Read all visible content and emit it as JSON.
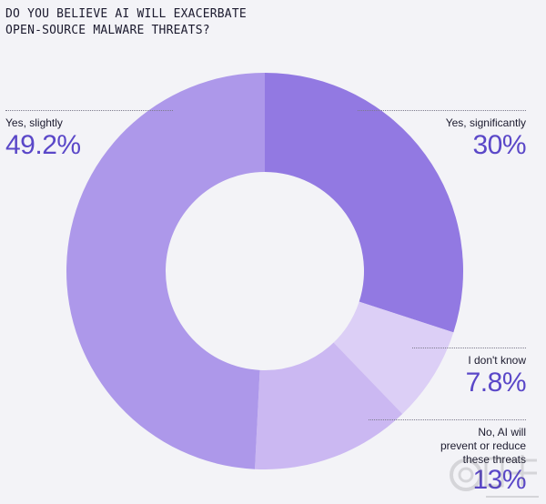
{
  "title_lines": [
    "DO YOU BELIEVE AI WILL EXACERBATE",
    "OPEN-SOURCE MALWARE THREATS?"
  ],
  "chart_data": {
    "type": "pie",
    "variant": "donut",
    "title": "DO YOU BELIEVE AI WILL EXACERBATE OPEN-SOURCE MALWARE THREATS?",
    "categories": [
      "Yes, significantly",
      "I don't know",
      "No, AI will\nprevent or reduce\nthese threats",
      "Yes, slightly"
    ],
    "values": [
      30,
      7.8,
      13,
      49.2
    ],
    "value_labels": [
      "30%",
      "7.8%",
      "13%",
      "49.2%"
    ],
    "colors": [
      "#9279e2",
      "#dccff6",
      "#cbb8f2",
      "#ad98ea"
    ],
    "start_angle_deg": 0,
    "direction": "clockwise",
    "legend": "none"
  }
}
